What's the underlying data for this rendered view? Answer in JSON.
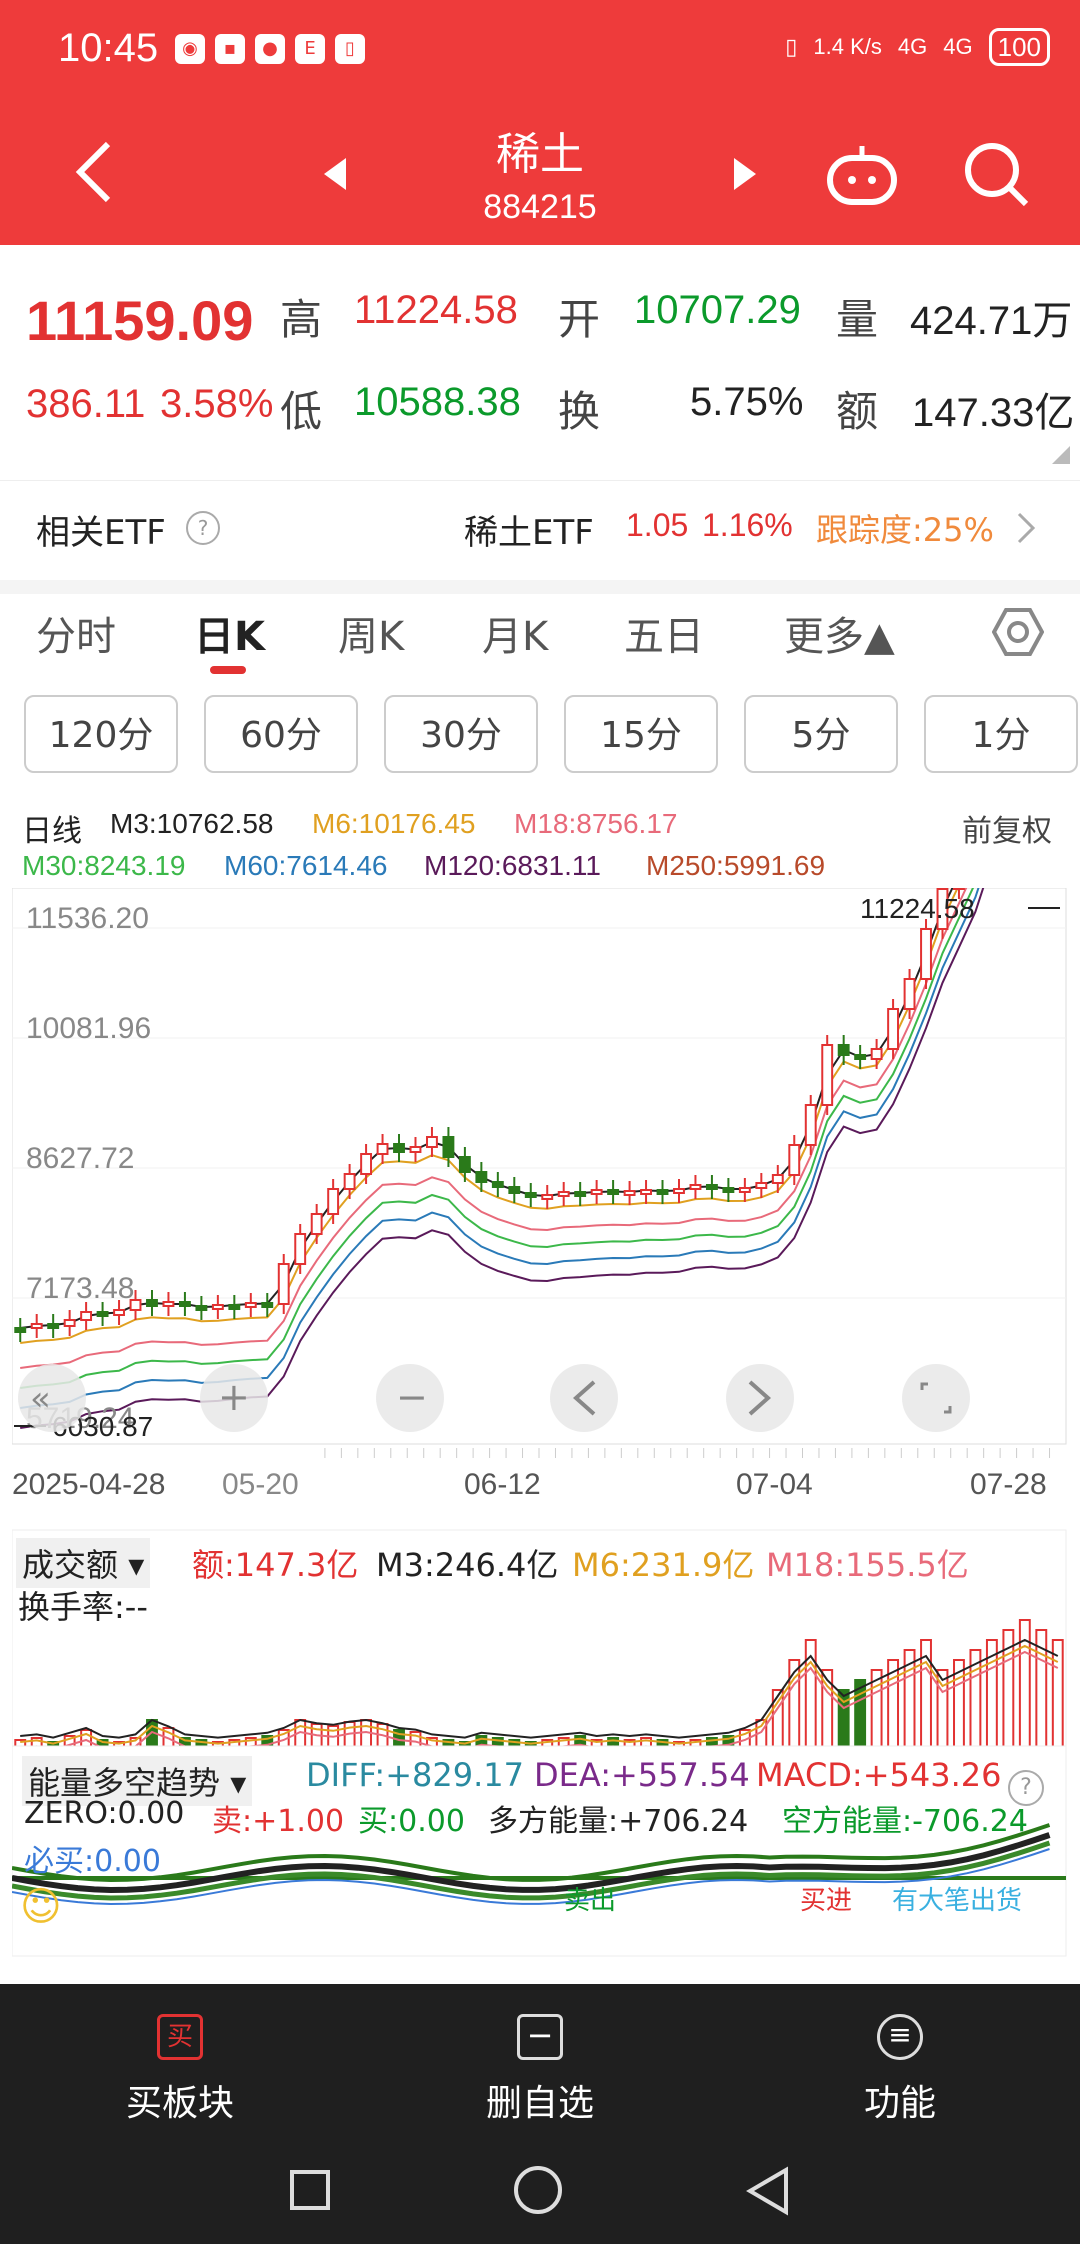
{
  "status_bar": {
    "time": "10:45",
    "net_speed": "1.4 K/s",
    "signal1": "4G",
    "signal2": "4G",
    "battery": "100"
  },
  "header": {
    "title": "稀土",
    "code": "884215"
  },
  "quote": {
    "price": "11159.09",
    "change": "386.11",
    "change_pct": "3.58%",
    "high_label": "高",
    "high": "11224.58",
    "open_label": "开",
    "open": "10707.29",
    "volume_label": "量",
    "volume": "424.71万",
    "low_label": "低",
    "low": "10588.38",
    "turnover_label": "换",
    "turnover": "5.75%",
    "amount_label": "额",
    "amount": "147.33亿"
  },
  "etf": {
    "label": "相关ETF",
    "name": "稀土ETF",
    "price": "1.05",
    "pct": "1.16%",
    "tracking": "跟踪度:25%"
  },
  "tabs": [
    "分时",
    "日K",
    "周K",
    "月K",
    "五日",
    "更多▲"
  ],
  "periods": [
    "120分",
    "60分",
    "30分",
    "15分",
    "5分",
    "1分"
  ],
  "kline": {
    "label": "日线",
    "adj": "前复权",
    "ma_row1": [
      {
        "text": "M3:10762.58",
        "color": "#222222"
      },
      {
        "text": "M6:10176.45",
        "color": "#e0a020"
      },
      {
        "text": "M18:8756.17",
        "color": "#e86a7a"
      }
    ],
    "ma_row2": [
      {
        "text": "M30:8243.19",
        "color": "#3cb84a"
      },
      {
        "text": "M60:7614.46",
        "color": "#2a7ab8"
      },
      {
        "text": "M120:6831.11",
        "color": "#5a1a5a"
      },
      {
        "text": "M250:5991.69",
        "color": "#b84a2a"
      }
    ],
    "y_labels": [
      "11536.20",
      "10081.96",
      "8627.72",
      "7173.48",
      "5719.24"
    ],
    "high_mark": "11224.58",
    "low_mark": "6030.87",
    "x_labels": [
      "2025-04-28",
      "05-20",
      "06-12",
      "07-04",
      "07-28"
    ]
  },
  "volume": {
    "label": "成交额",
    "amount": "额:147.3亿",
    "m3": "M3:246.4亿",
    "m6": "M6:231.9亿",
    "m18": "M18:155.5亿",
    "turnover": "换手率:--"
  },
  "macd": {
    "label": "能量多空趋势",
    "diff": "DIFF:+829.17",
    "dea": "DEA:+557.54",
    "macd": "MACD:+543.26",
    "zero": "ZERO:0.00",
    "sell": "卖:+1.00",
    "buy": "买:0.00",
    "long_energy": "多方能量:+706.24",
    "short_energy": "空方能量:-706.24",
    "must_buy": "必买:0.00",
    "sell_out": "卖出",
    "buy_in": "买进",
    "big_sell": "有大笔出货"
  },
  "bottom_nav": {
    "buy": "买板块",
    "delete": "删自选",
    "func": "功能"
  },
  "colors": {
    "brand_red": "#ee3b3b",
    "up": "#e23232",
    "down": "#0b9a2b"
  }
}
